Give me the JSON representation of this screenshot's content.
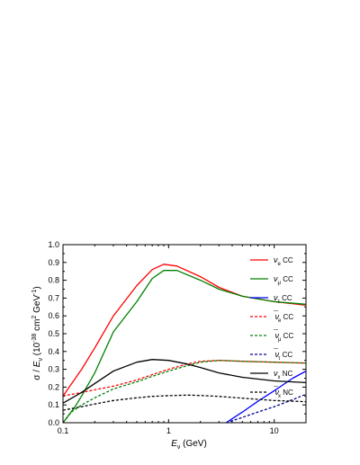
{
  "chart_data": {
    "type": "line",
    "title": "",
    "xlabel": "E_ν (GeV)",
    "ylabel": "σ / E_ν (10^-38 cm² GeV^-1)",
    "xscale": "log",
    "xlim": [
      0.1,
      20
    ],
    "ylim": [
      0.0,
      1.0
    ],
    "xticks": [
      {
        "value": 0.1,
        "label": "0.1"
      },
      {
        "value": 1,
        "label": "1"
      },
      {
        "value": 10,
        "label": "10"
      }
    ],
    "yticks": [
      {
        "value": 0.0,
        "label": "0.0"
      },
      {
        "value": 0.1,
        "label": "0.1"
      },
      {
        "value": 0.2,
        "label": "0.2"
      },
      {
        "value": 0.3,
        "label": "0.3"
      },
      {
        "value": 0.4,
        "label": "0.4"
      },
      {
        "value": 0.5,
        "label": "0.5"
      },
      {
        "value": 0.6,
        "label": "0.6"
      },
      {
        "value": 0.7,
        "label": "0.7"
      },
      {
        "value": 0.8,
        "label": "0.8"
      },
      {
        "value": 0.9,
        "label": "0.9"
      },
      {
        "value": 1.0,
        "label": "1.0"
      }
    ],
    "legend_placement": "top-right",
    "grid": false,
    "series": [
      {
        "name": "νe CC",
        "base": "ν",
        "sub": "e",
        "bar": false,
        "suffix": "CC",
        "color": "#ff0000",
        "dash": "solid",
        "x": [
          0.1,
          0.15,
          0.2,
          0.3,
          0.5,
          0.7,
          0.9,
          1.2,
          2,
          3,
          5,
          10,
          20
        ],
        "y": [
          0.15,
          0.3,
          0.42,
          0.6,
          0.77,
          0.86,
          0.89,
          0.88,
          0.82,
          0.76,
          0.71,
          0.68,
          0.66
        ]
      },
      {
        "name": "νμ CC",
        "base": "ν",
        "sub": "μ",
        "bar": false,
        "suffix": "CC",
        "color": "#008000",
        "dash": "solid",
        "x": [
          0.1,
          0.13,
          0.15,
          0.2,
          0.3,
          0.5,
          0.7,
          0.9,
          1.2,
          2,
          3,
          5,
          10,
          20
        ],
        "y": [
          0.0,
          0.09,
          0.15,
          0.28,
          0.51,
          0.68,
          0.81,
          0.855,
          0.855,
          0.8,
          0.75,
          0.71,
          0.68,
          0.665
        ]
      },
      {
        "name": "ντ CC",
        "base": "ν",
        "sub": "τ",
        "bar": false,
        "suffix": "CC",
        "color": "#0000ff",
        "dash": "solid",
        "x": [
          3.5,
          5,
          7,
          10,
          15,
          20
        ],
        "y": [
          0.0,
          0.06,
          0.12,
          0.18,
          0.25,
          0.29
        ]
      },
      {
        "name": "ν̄e CC",
        "base": "ν",
        "sub": "e",
        "bar": true,
        "suffix": "CC",
        "color": "#ff0000",
        "dash": "dashed",
        "x": [
          0.1,
          0.15,
          0.2,
          0.3,
          0.5,
          0.7,
          1,
          1.5,
          2,
          3,
          5,
          10,
          20
        ],
        "y": [
          0.15,
          0.17,
          0.185,
          0.205,
          0.24,
          0.27,
          0.3,
          0.33,
          0.345,
          0.35,
          0.345,
          0.34,
          0.335
        ]
      },
      {
        "name": "ν̄μ CC",
        "base": "ν",
        "sub": "μ",
        "bar": true,
        "suffix": "CC",
        "color": "#008000",
        "dash": "dashed",
        "x": [
          0.1,
          0.12,
          0.15,
          0.2,
          0.3,
          0.5,
          0.7,
          1,
          1.5,
          2,
          3,
          5,
          10,
          20
        ],
        "y": [
          0.0,
          0.06,
          0.1,
          0.14,
          0.19,
          0.23,
          0.26,
          0.29,
          0.32,
          0.34,
          0.35,
          0.345,
          0.34,
          0.335
        ]
      },
      {
        "name": "ν̄τ CC",
        "base": "ν",
        "sub": "τ",
        "bar": true,
        "suffix": "CC",
        "color": "#00008b",
        "dash": "dashed",
        "x": [
          3.5,
          5,
          7,
          10,
          15,
          20
        ],
        "y": [
          0.0,
          0.03,
          0.06,
          0.09,
          0.13,
          0.16
        ]
      },
      {
        "name": "νx NC",
        "base": "ν",
        "sub": "x",
        "bar": false,
        "suffix": "NC",
        "color": "#000000",
        "dash": "solid",
        "x": [
          0.1,
          0.15,
          0.2,
          0.3,
          0.5,
          0.7,
          1,
          1.5,
          2,
          3,
          5,
          10,
          20
        ],
        "y": [
          0.11,
          0.17,
          0.22,
          0.29,
          0.34,
          0.355,
          0.35,
          0.33,
          0.31,
          0.28,
          0.255,
          0.235,
          0.225
        ]
      },
      {
        "name": "ν̄x NC",
        "base": "ν",
        "sub": "x",
        "bar": true,
        "suffix": "NC",
        "color": "#000000",
        "dash": "dashed",
        "x": [
          0.1,
          0.15,
          0.2,
          0.3,
          0.5,
          0.7,
          1,
          1.5,
          2,
          3,
          5,
          10,
          20
        ],
        "y": [
          0.07,
          0.09,
          0.105,
          0.125,
          0.14,
          0.148,
          0.152,
          0.155,
          0.153,
          0.148,
          0.138,
          0.125,
          0.118
        ]
      }
    ]
  }
}
